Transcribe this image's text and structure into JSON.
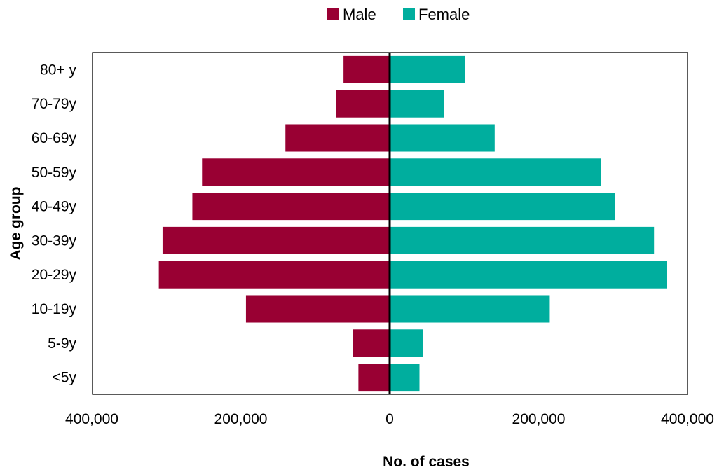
{
  "colors": {
    "male": "#990033",
    "female": "#00ae9e",
    "axis": "#000000"
  },
  "chart_data": {
    "type": "bar",
    "orientation": "horizontal",
    "layout": "population-pyramid",
    "title": "",
    "xlabel": "No. of cases",
    "ylabel": "Age group",
    "categories": [
      "<5y",
      "5-9y",
      "10-19y",
      "20-29y",
      "30-39y",
      "40-49y",
      "50-59y",
      "60-69y",
      "70-79y",
      "80+ y"
    ],
    "series": [
      {
        "name": "Male",
        "side": "left",
        "color": "#990033",
        "values": [
          42000,
          49000,
          193000,
          310000,
          305000,
          265000,
          252000,
          140000,
          72000,
          62000
        ]
      },
      {
        "name": "Female",
        "side": "right",
        "color": "#00ae9e",
        "values": [
          40000,
          45000,
          215000,
          372000,
          355000,
          303000,
          284000,
          141000,
          73000,
          101000
        ]
      }
    ],
    "xlim": [
      -400000,
      400000
    ],
    "xticks": [
      -400000,
      -200000,
      0,
      200000,
      400000
    ],
    "xtick_labels": [
      "400,000",
      "200,000",
      "0",
      "200,000",
      "400,000"
    ],
    "legend": {
      "position": "top-center",
      "entries": [
        "Male",
        "Female"
      ]
    },
    "grid": false
  }
}
